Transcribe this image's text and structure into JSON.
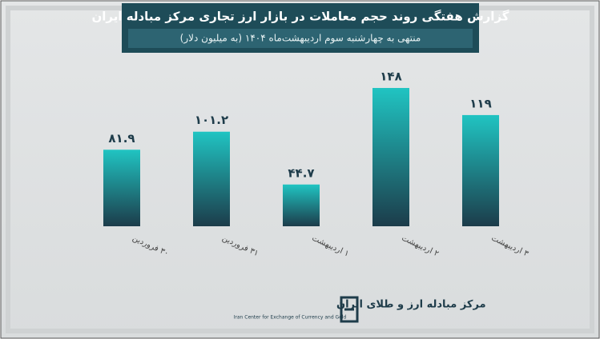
{
  "chart_data": {
    "type": "bar",
    "title": "گزارش هفتگی روند حجم معاملات در بازار ارز تجاری مرکز مبادله ایران",
    "subtitle": "منتهی به چهارشنبه سوم اردیبهشت‌ماه ۱۴۰۴ (به میلیون دلار)",
    "categories": [
      "۳۰ فروردین",
      "۳۱ فروردین",
      "۱ اردیبهشت",
      "۲ اردیبهشت",
      "۳ اردیبهشت"
    ],
    "values": [
      81.9,
      101.2,
      44.7,
      148,
      119
    ],
    "value_labels": [
      "۸۱.۹",
      "۱۰۱.۲",
      "۴۴.۷",
      "۱۴۸",
      "۱۱۹"
    ],
    "color": "#1fbfbf",
    "ylim": [
      0,
      160
    ]
  },
  "logo": {
    "name": "مرکز مبادله ارز و طلای ایران",
    "name_en": "Iran Center for Exchange of Currency and Gold"
  }
}
